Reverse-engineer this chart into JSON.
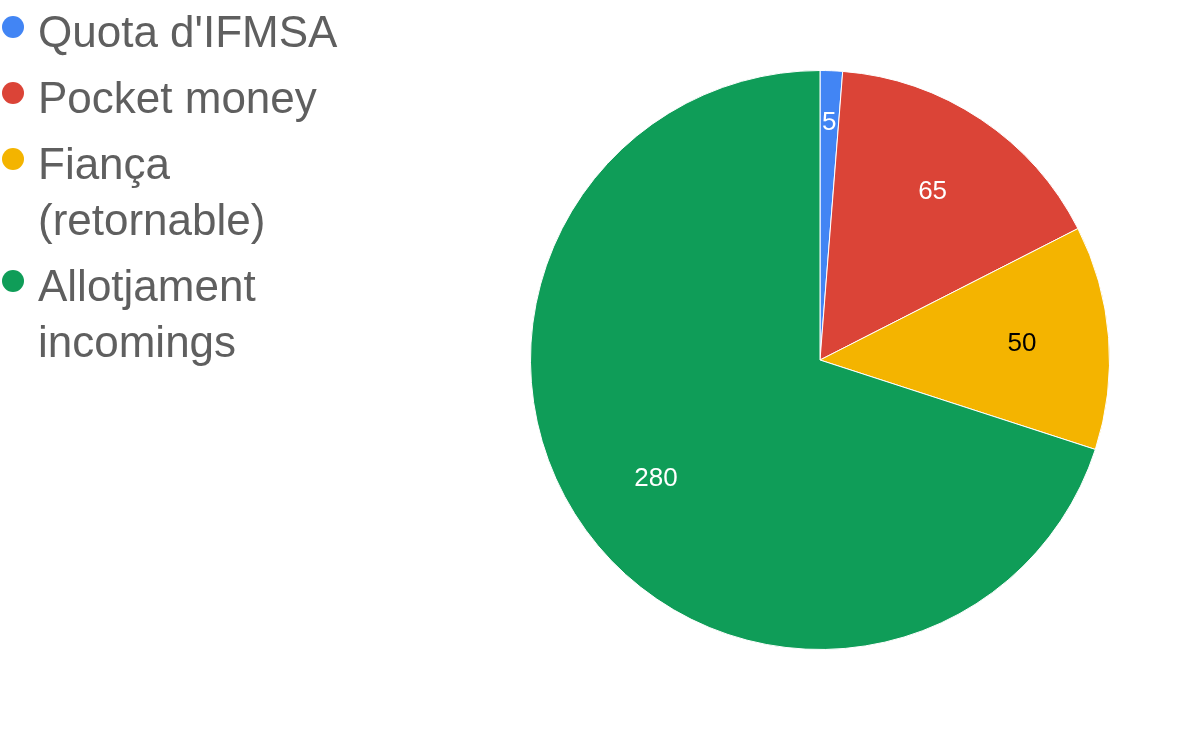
{
  "chart_data": {
    "type": "pie",
    "categories": [
      "Quota d'IFMSA",
      "Pocket money",
      "Fiança (retornable)",
      "Allotjament incomings"
    ],
    "values": [
      5,
      65,
      50,
      280
    ],
    "colors": [
      "#4285f4",
      "#db4437",
      "#f4b400",
      "#0f9d58"
    ],
    "data_labels": true,
    "legend": "left"
  }
}
